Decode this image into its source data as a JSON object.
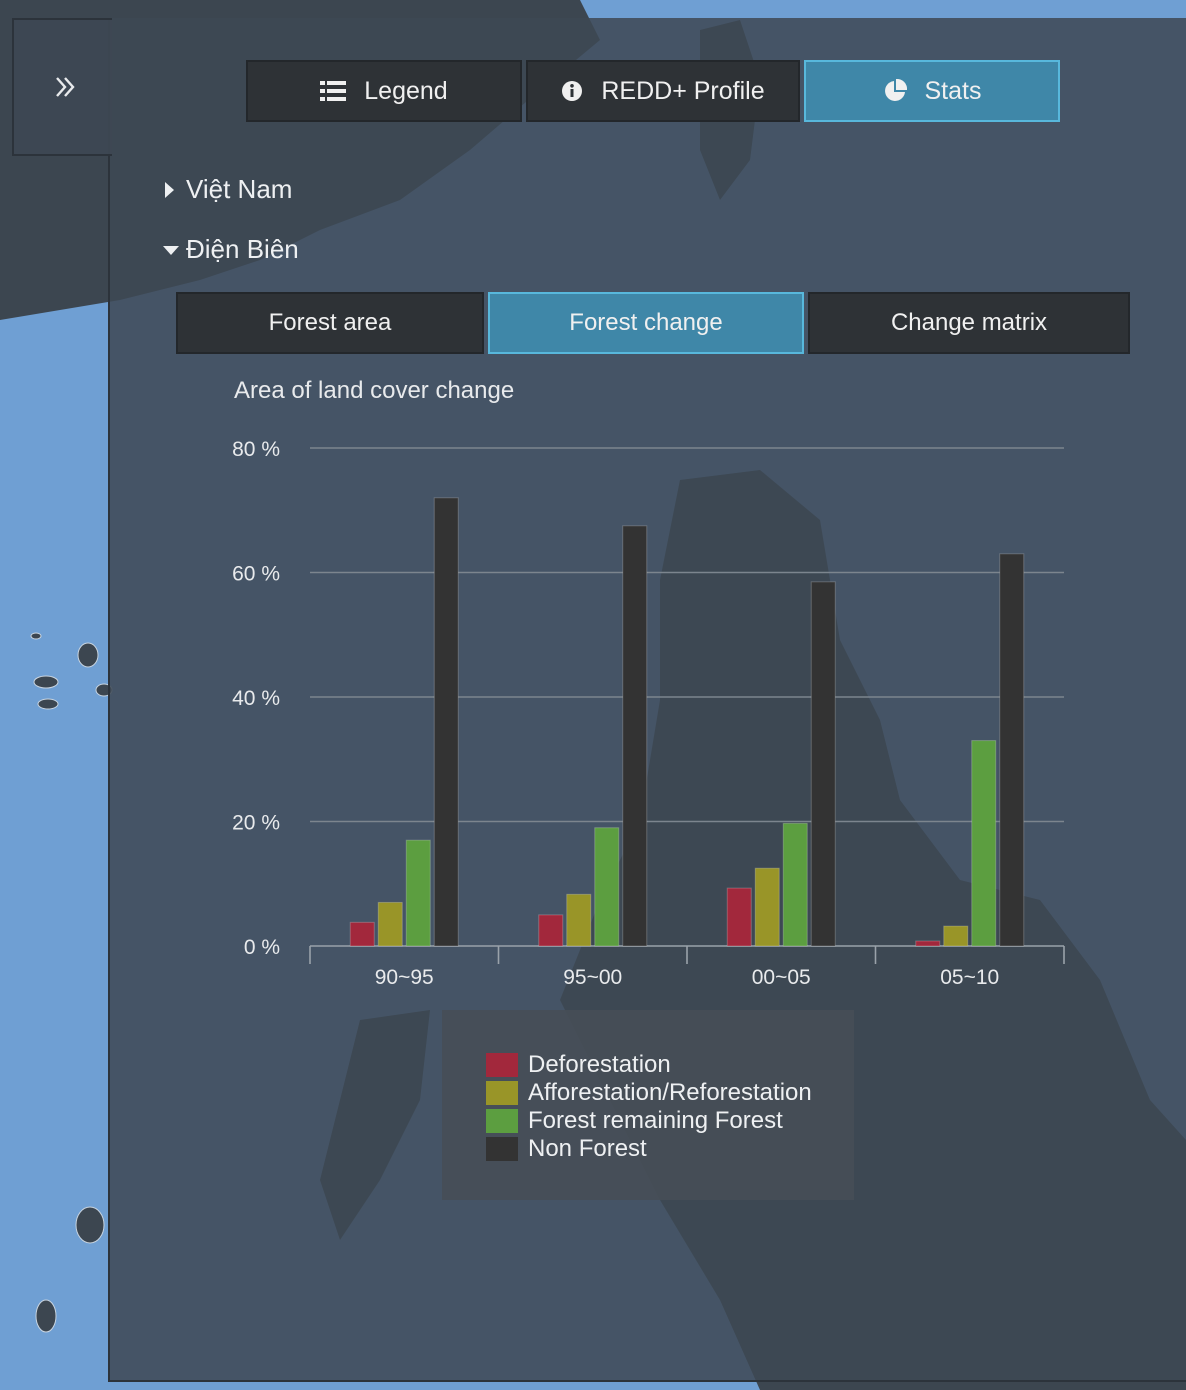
{
  "tabs": [
    {
      "label": "Legend",
      "icon": "list-icon",
      "active": false
    },
    {
      "label": "REDD+ Profile",
      "icon": "info-icon",
      "active": false
    },
    {
      "label": "Stats",
      "icon": "pie-chart-icon",
      "active": true
    }
  ],
  "tree": [
    {
      "label": "Việt Nam",
      "expanded": false
    },
    {
      "label": "Điện Biên",
      "expanded": true
    }
  ],
  "subtabs": [
    {
      "label": "Forest area",
      "active": false
    },
    {
      "label": "Forest change",
      "active": true
    },
    {
      "label": "Change matrix",
      "active": false
    }
  ],
  "colors": {
    "accent": "#3f87a8",
    "deforestation": "#a2283c",
    "afforestation": "#999528",
    "forest_remaining": "#5c9e40",
    "non_forest": "#333333"
  },
  "chart_data": {
    "type": "bar",
    "title": "Area of land cover change",
    "categories": [
      "90~95",
      "95~00",
      "00~05",
      "05~10"
    ],
    "series": [
      {
        "name": "Deforestation",
        "values": [
          3.8,
          5.0,
          9.3,
          0.8
        ]
      },
      {
        "name": "Afforestation/Reforestation",
        "values": [
          7.0,
          8.3,
          12.5,
          3.2
        ]
      },
      {
        "name": "Forest remaining Forest",
        "values": [
          17.0,
          19.0,
          19.7,
          33.0
        ]
      },
      {
        "name": "Non Forest",
        "values": [
          72.0,
          67.5,
          58.5,
          63.0
        ]
      }
    ],
    "y_ticks": [
      "0 %",
      "20 %",
      "40 %",
      "60 %",
      "80 %"
    ],
    "ylim": [
      0,
      80
    ],
    "grid": true,
    "legend_position": "bottom"
  }
}
